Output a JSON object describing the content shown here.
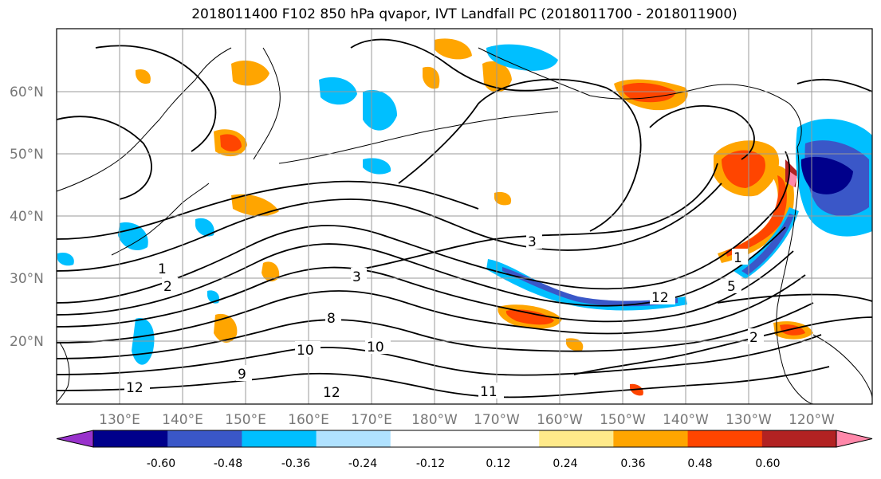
{
  "title": "2018011400 F102 850 hPa qvapor, IVT Landfall PC (2018011700 - 2018011900)",
  "map": {
    "lat_labels": [
      "60°N",
      "50°N",
      "40°N",
      "30°N",
      "20°N"
    ],
    "lon_labels": [
      "130°E",
      "140°E",
      "150°E",
      "160°E",
      "170°E",
      "180°W",
      "170°W",
      "160°W",
      "150°W",
      "140°W",
      "130°W",
      "120°W"
    ],
    "contour_labels": [
      "1",
      "2",
      "3",
      "3",
      "8",
      "10",
      "10",
      "12",
      "12",
      "9",
      "11",
      "12",
      "1",
      "5",
      "2"
    ]
  },
  "colorbar": {
    "colors": [
      "#9932cc",
      "#00008b",
      "#3a57c8",
      "#00bfff",
      "#b0e2ff",
      "#ffffff",
      "#ffffff",
      "#ffea8a",
      "#ffa500",
      "#ff4500",
      "#b22222",
      "#ff88aa"
    ],
    "tick_labels": [
      "-0.60",
      "-0.48",
      "-0.36",
      "-0.24",
      "-0.12",
      "0.12",
      "0.24",
      "0.36",
      "0.48",
      "0.60"
    ]
  },
  "colors": {
    "contour": "#000000",
    "grid": "#999999",
    "coast": "#000000"
  }
}
